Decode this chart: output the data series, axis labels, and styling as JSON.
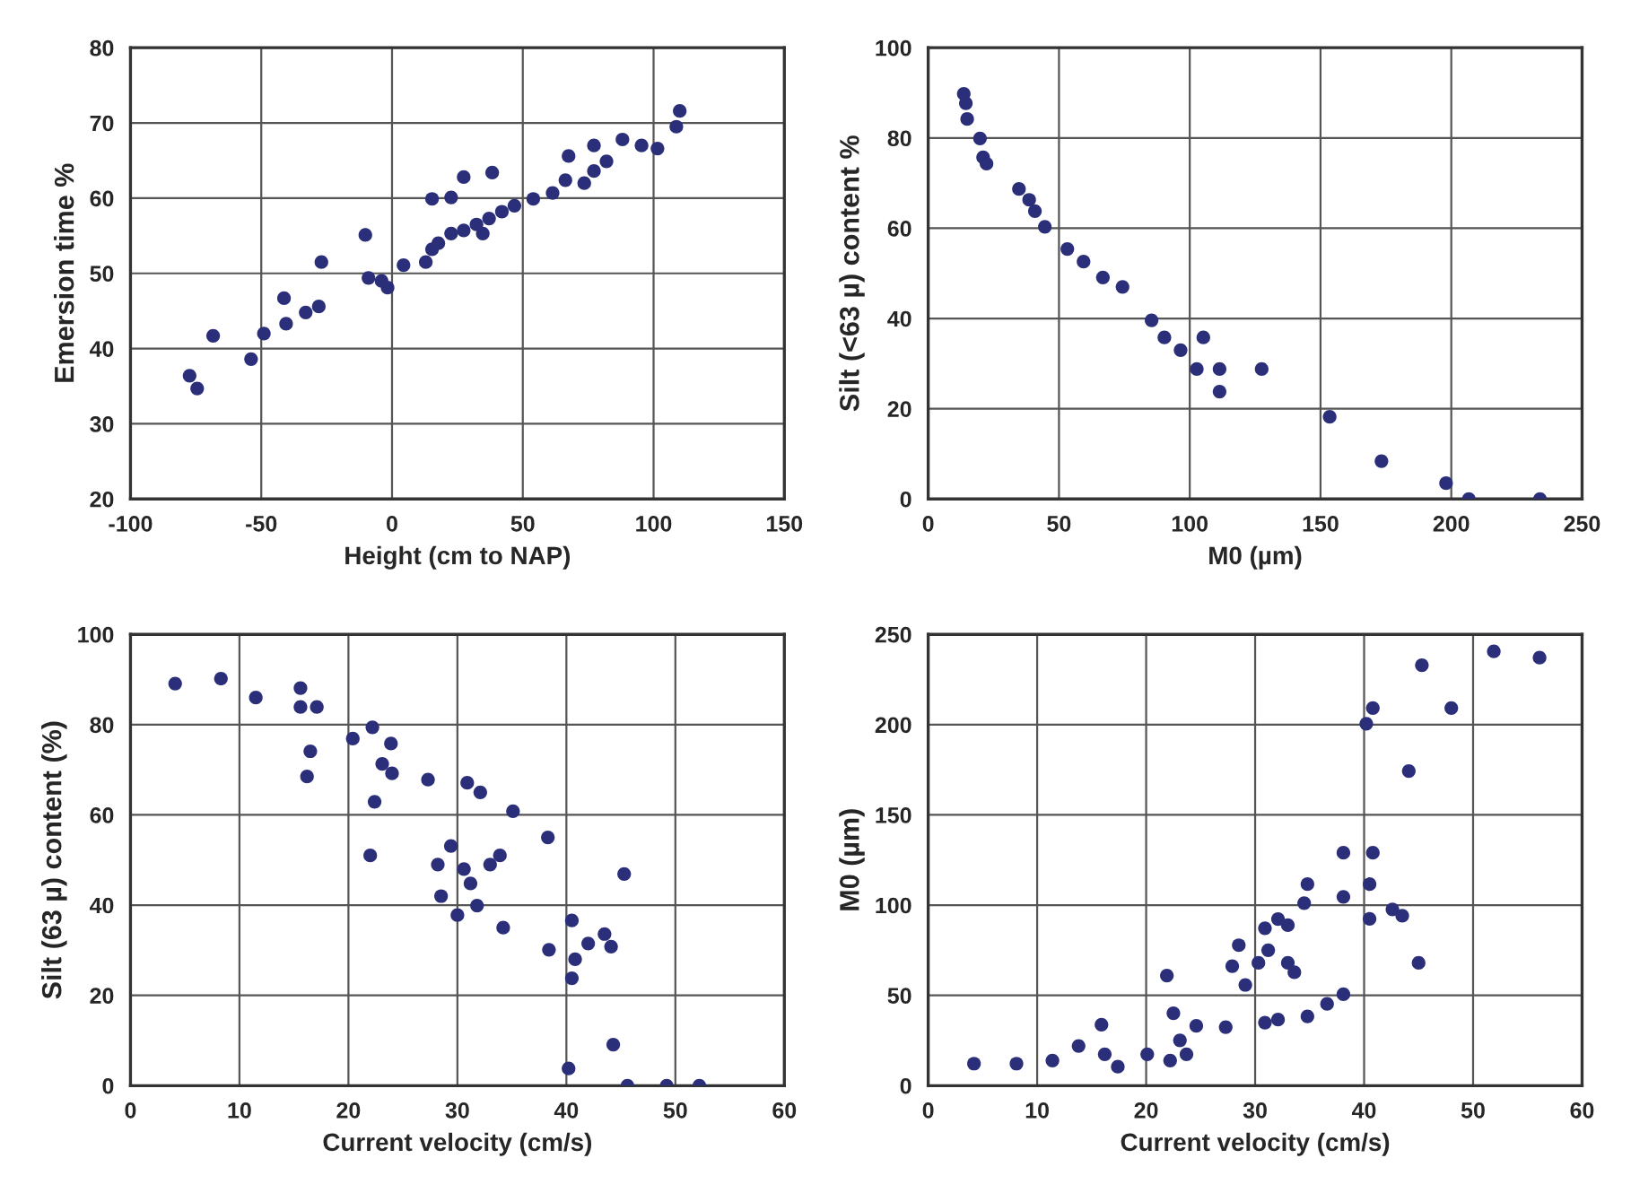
{
  "chart_data": [
    {
      "type": "scatter",
      "xlabel": "Height (cm to NAP)",
      "ylabel": "Emersion time %",
      "xlim": [
        -100,
        150
      ],
      "ylim": [
        20,
        80
      ],
      "xticks": [
        -100,
        -50,
        0,
        50,
        100,
        150
      ],
      "yticks": [
        20,
        30,
        40,
        50,
        60,
        70,
        80
      ],
      "grid": true,
      "marker": "circle",
      "series": [
        {
          "color": "#2b2f7a",
          "x": [
            -77.4,
            -74.5,
            -68.4,
            -53.9,
            -49,
            -41.3,
            -40.5,
            -33,
            -28,
            -27,
            -10.2,
            -9,
            -4,
            -1.7,
            4.4,
            12.9,
            15.3,
            17.7,
            22.6,
            27.4,
            32.3,
            34.7,
            37.1,
            42,
            46.8,
            54,
            61.4,
            38.3,
            22.6,
            15.3,
            27.4,
            66.3,
            67.5,
            73.5,
            77.2,
            77.2,
            82,
            88.1,
            95.4,
            101.5,
            108.7,
            110
          ],
          "values": [
            36.4,
            34.7,
            41.7,
            38.6,
            42,
            46.7,
            43.3,
            44.8,
            45.6,
            51.5,
            55.1,
            49.4,
            49,
            48.1,
            51.1,
            51.5,
            53.2,
            54,
            55.3,
            55.7,
            56.5,
            55.3,
            57.3,
            58.2,
            59,
            59.9,
            60.7,
            63.4,
            60.1,
            59.9,
            62.8,
            62.4,
            65.6,
            62,
            63.6,
            67,
            64.9,
            67.8,
            67,
            66.6,
            69.5,
            71.6
          ]
        }
      ]
    },
    {
      "type": "scatter",
      "xlabel": "M0 (µm)",
      "ylabel": "Silt (<63 µ) content %",
      "xlim": [
        0,
        250
      ],
      "ylim": [
        0,
        100
      ],
      "xticks": [
        0,
        50,
        100,
        150,
        200,
        250
      ],
      "yticks": [
        0,
        20,
        40,
        60,
        80,
        100
      ],
      "grid": true,
      "marker": "circle",
      "series": [
        {
          "color": "#2b2f7a",
          "x": [
            13.6,
            14.4,
            14.9,
            19.8,
            21,
            22.3,
            34.7,
            38.6,
            40.8,
            44.6,
            53.2,
            59.4,
            66.8,
            74.3,
            85.4,
            90.3,
            96.5,
            102.7,
            105.2,
            111.4,
            111.4,
            127.5,
            153.5,
            173.3,
            198,
            206.7,
            233.9
          ],
          "values": [
            89.8,
            87.7,
            84.2,
            79.9,
            75.7,
            74.3,
            68.7,
            66.3,
            63.8,
            60.3,
            55.4,
            52.6,
            49.1,
            47,
            39.6,
            35.8,
            33,
            28.8,
            35.8,
            28.8,
            23.8,
            28.8,
            18.2,
            8.4,
            3.5,
            0,
            0
          ]
        }
      ]
    },
    {
      "type": "scatter",
      "xlabel": "Current velocity (cm/s)",
      "ylabel": "Silt (63 µ) content (%)",
      "xlim": [
        0,
        60
      ],
      "ylim": [
        0,
        100
      ],
      "xticks": [
        0,
        10,
        20,
        30,
        40,
        50,
        60
      ],
      "yticks": [
        0,
        20,
        40,
        60,
        80,
        100
      ],
      "grid": true,
      "marker": "circle",
      "series": [
        {
          "color": "#2b2f7a",
          "x": [
            4.1,
            8.3,
            11.5,
            15.6,
            17.1,
            15.6,
            16.5,
            16.2,
            20.4,
            22.2,
            23.9,
            23.1,
            24,
            22.4,
            22,
            27.3,
            30.9,
            32.1,
            35.1,
            38.3,
            29.4,
            30.6,
            31.2,
            33,
            33.9,
            28.2,
            28.5,
            30,
            31.8,
            34.2,
            38.4,
            40.5,
            40.8,
            40.5,
            42,
            43.5,
            44.1,
            45.3,
            44.3,
            40.2,
            45.6,
            49.2,
            52.2
          ],
          "values": [
            89.1,
            90.2,
            86,
            88.1,
            83.9,
            83.9,
            74.1,
            68.5,
            76.9,
            79.4,
            75.8,
            71.3,
            69.2,
            62.9,
            51,
            67.8,
            67.1,
            65,
            60.8,
            55,
            53.1,
            48,
            44.8,
            49,
            51,
            49,
            42,
            37.8,
            39.9,
            35,
            30.1,
            36.6,
            28,
            23.8,
            31.5,
            33.6,
            30.8,
            46.9,
            9.1,
            3.8,
            0,
            0,
            0
          ]
        }
      ]
    },
    {
      "type": "scatter",
      "xlabel": "Current velocity (cm/s)",
      "ylabel": "M0 (µm)",
      "xlim": [
        0,
        60
      ],
      "ylim": [
        0,
        250
      ],
      "xticks": [
        0,
        10,
        20,
        30,
        40,
        50,
        60
      ],
      "yticks": [
        0,
        50,
        100,
        150,
        200,
        250
      ],
      "grid": true,
      "marker": "circle",
      "series": [
        {
          "color": "#2b2f7a",
          "x": [
            4.2,
            8.1,
            11.4,
            13.8,
            15.9,
            16.2,
            17.4,
            20.1,
            22.2,
            21.9,
            22.5,
            23.1,
            23.7,
            24.6,
            27.3,
            27.9,
            28.5,
            29.1,
            30.3,
            30.9,
            31.2,
            32.1,
            33,
            33,
            33.6,
            30.9,
            32.1,
            34.8,
            34.5,
            34.8,
            36.6,
            38.1,
            38.1,
            40.8,
            38.1,
            40.5,
            40.5,
            42.6,
            43.5,
            45,
            44.1,
            40.8,
            40.2,
            45.3,
            48,
            51.9,
            56.1
          ],
          "values": [
            12.2,
            12.2,
            13.9,
            22,
            33.8,
            17.4,
            10.5,
            17.4,
            13.9,
            61,
            40.1,
            25.1,
            17.4,
            33.1,
            32.4,
            66.2,
            77.8,
            55.8,
            68,
            87.2,
            75,
            92.3,
            88.9,
            68,
            62.8,
            34.9,
            36.6,
            111.6,
            101.1,
            38.4,
            45.3,
            50.6,
            129,
            129,
            104.6,
            111.6,
            92.4,
            97.6,
            94.1,
            68,
            174.3,
            209.2,
            200.5,
            232.9,
            209.2,
            240.6,
            237.1
          ]
        }
      ]
    }
  ]
}
